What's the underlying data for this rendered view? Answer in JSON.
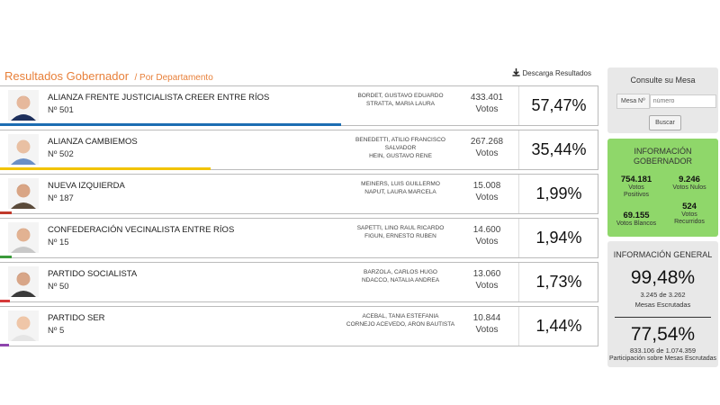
{
  "header": {
    "title": "Resultados Gobernador",
    "subtitle": "/ Por Departamento",
    "download_label": "Descarga Resultados"
  },
  "rows": [
    {
      "party": "ALIANZA FRENTE JUSTICIALISTA CREER ENTRE RÍOS",
      "number": "Nº 501",
      "cand1": "BORDET, GUSTAVO EDUARDO",
      "cand2": "STRATTA, MARIA LAURA",
      "votes": "433.401",
      "votes_label": "Votos",
      "pct": "57,47%",
      "color": "#1c6db3",
      "share": 57.47
    },
    {
      "party": "ALIANZA CAMBIEMOS",
      "number": "Nº 502",
      "cand1": "BENEDETTI, ATILIO FRANCISCO SALVADOR",
      "cand2": "HEIN, GUSTAVO RENE",
      "votes": "267.268",
      "votes_label": "Votos",
      "pct": "35,44%",
      "color": "#f2c300",
      "share": 35.44
    },
    {
      "party": "NUEVA IZQUIERDA",
      "number": "Nº 187",
      "cand1": "MEINERS, LUIS GUILLERMO",
      "cand2": "NAPUT, LAURA MARCELA",
      "votes": "15.008",
      "votes_label": "Votos",
      "pct": "1,99%",
      "color": "#c0392b",
      "share": 1.99
    },
    {
      "party": "CONFEDERACIÓN VECINALISTA ENTRE RÍOS",
      "number": "Nº 15",
      "cand1": "SAPETTI, LINO RAUL RICARDO",
      "cand2": "FIGUN, ERNESTO RUBEN",
      "votes": "14.600",
      "votes_label": "Votos",
      "pct": "1,94%",
      "color": "#3a9a3a",
      "share": 1.94
    },
    {
      "party": "PARTIDO SOCIALISTA",
      "number": "Nº 50",
      "cand1": "BARZOLA, CARLOS HUGO",
      "cand2": "NDACCO, NATALIA ANDREA",
      "votes": "13.060",
      "votes_label": "Votos",
      "pct": "1,73%",
      "color": "#d63a3a",
      "share": 1.73
    },
    {
      "party": "PARTIDO SER",
      "number": "Nº 5",
      "cand1": "ACEBAL, TANIA ESTEFANIA",
      "cand2": "CORNEJO ACEVEDO, ARON BAUTISTA",
      "votes": "10.844",
      "votes_label": "Votos",
      "pct": "1,44%",
      "color": "#8e44ad",
      "share": 1.44
    }
  ],
  "consulte": {
    "title": "Consulte su Mesa",
    "mesa_label": "Mesa Nº",
    "placeholder": "número",
    "button": "Buscar"
  },
  "info": {
    "title1": "INFORMACIÓN",
    "title2": "GOBERNADOR",
    "positivos_value": "754.181",
    "positivos_label1": "Votos",
    "positivos_label2": "Positivos",
    "nulos_value": "9.246",
    "nulos_label": "Votos Nulos",
    "blancos_value": "69.155",
    "blancos_label": "Votos Blancos",
    "recurridos_value": "524",
    "recurridos_label1": "Votos",
    "recurridos_label2": "Recurridos"
  },
  "general": {
    "title": "INFORMACIÓN GENERAL",
    "mesas_pct": "99,48%",
    "mesas_count": "3.245 de 3.262",
    "mesas_label": "Mesas Escrutadas",
    "part_pct": "77,54%",
    "part_count": "833.106 de 1.074.359",
    "part_label": "Participación sobre Mesas Escrutadas"
  }
}
